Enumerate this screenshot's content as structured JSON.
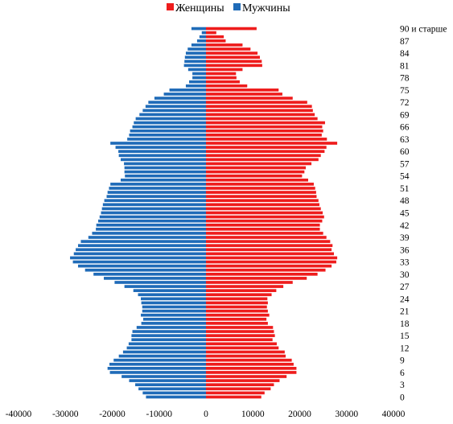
{
  "chart_data": {
    "type": "bar",
    "orientation": "horizontal",
    "legend": {
      "placement": "top-center"
    },
    "series": [
      {
        "name": "Женщины",
        "color": "#ee1c1c",
        "side": "right",
        "values": [
          11800,
          12500,
          13800,
          14500,
          15700,
          17200,
          19300,
          19300,
          18700,
          18300,
          17000,
          16800,
          15500,
          15100,
          14200,
          14700,
          14500,
          14300,
          13200,
          12900,
          13500,
          13200,
          13000,
          13200,
          13100,
          14000,
          15000,
          16500,
          18500,
          21500,
          23800,
          25500,
          26800,
          27800,
          28000,
          27300,
          26800,
          27000,
          26500,
          25700,
          25000,
          24300,
          24300,
          24800,
          25200,
          24900,
          24500,
          24200,
          24000,
          23600,
          23500,
          23300,
          23000,
          21800,
          20500,
          21000,
          21300,
          22500,
          24000,
          24500,
          25300,
          25700,
          28000,
          25800,
          24700,
          25000,
          24800,
          25400,
          23800,
          23200,
          22800,
          22600,
          21600,
          18500,
          16300,
          15500,
          8800,
          7200,
          6500,
          6400,
          7800,
          12000,
          11900,
          11500,
          11000,
          9500,
          7800,
          4200,
          3800,
          2200,
          10800
        ]
      },
      {
        "name": "Мужчины",
        "color": "#1f6bb8",
        "side": "left",
        "values": [
          12800,
          13500,
          14400,
          15100,
          16400,
          18000,
          20500,
          21000,
          20600,
          19700,
          18600,
          17700,
          16900,
          16500,
          15900,
          15900,
          15700,
          14800,
          13800,
          13400,
          13900,
          13600,
          13600,
          13800,
          13900,
          14500,
          15500,
          17400,
          19500,
          21800,
          24000,
          25800,
          27300,
          28400,
          29000,
          28200,
          27800,
          27300,
          26700,
          25100,
          24300,
          23500,
          23400,
          23000,
          22700,
          22400,
          22200,
          22000,
          21700,
          21200,
          21000,
          20700,
          20400,
          18200,
          17300,
          17400,
          17400,
          17500,
          18200,
          18600,
          18700,
          19300,
          20400,
          16800,
          16400,
          16200,
          15700,
          15400,
          15000,
          14200,
          13500,
          12900,
          12300,
          11000,
          9000,
          7800,
          4300,
          3600,
          2900,
          2900,
          3800,
          4700,
          4600,
          4500,
          4300,
          3900,
          3100,
          1900,
          1400,
          900,
          3100
        ]
      }
    ],
    "xlim": [
      -40000,
      40000
    ],
    "xticks": [
      -40000,
      -30000,
      -20000,
      -10000,
      0,
      10000,
      20000,
      30000,
      40000
    ],
    "ylabels": [
      "0",
      "3",
      "6",
      "9",
      "12",
      "15",
      "18",
      "21",
      "24",
      "27",
      "30",
      "33",
      "36",
      "39",
      "42",
      "45",
      "48",
      "51",
      "54",
      "57",
      "60",
      "63",
      "66",
      "69",
      "72",
      "75",
      "78",
      "81",
      "84",
      "87",
      "90 и старше"
    ],
    "ylabel_step": 3
  }
}
